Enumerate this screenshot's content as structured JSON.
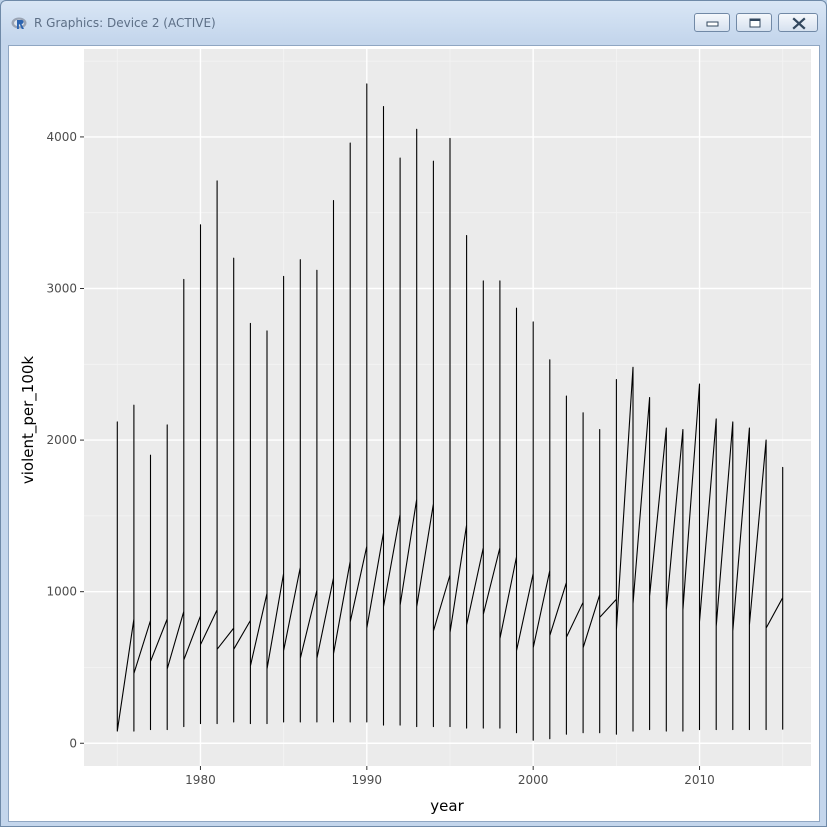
{
  "window": {
    "title": "R Graphics: Device 2 (ACTIVE)",
    "icon": "r-logo-icon",
    "buttons": [
      "minimize-icon",
      "maximize-icon",
      "close-icon"
    ]
  },
  "colors": {
    "panel": "#ebebeb",
    "grid_major": "#ffffff",
    "grid_minor": "#f4f4f4",
    "line": "#000000"
  },
  "chart_data": {
    "type": "line",
    "xlabel": "year",
    "ylabel": "violent_per_100k",
    "xlim": [
      1973.0,
      2016.7
    ],
    "ylim": [
      -150,
      4580
    ],
    "xticks": [
      1980,
      1990,
      2000,
      2010
    ],
    "yticks": [
      0,
      1000,
      2000,
      3000,
      4000
    ],
    "grid": true,
    "legend": "none",
    "points": [
      {
        "year": 1975,
        "values": [
          440,
          2120,
          80
        ]
      },
      {
        "year": 1976,
        "values": [
          820,
          2230,
          80,
          460
        ]
      },
      {
        "year": 1977,
        "values": [
          810,
          1900,
          90,
          540
        ]
      },
      {
        "year": 1978,
        "values": [
          820,
          2100,
          90,
          490
        ]
      },
      {
        "year": 1979,
        "values": [
          870,
          3060,
          110,
          550
        ]
      },
      {
        "year": 1980,
        "values": [
          840,
          3420,
          130,
          650
        ]
      },
      {
        "year": 1981,
        "values": [
          880,
          3710,
          130,
          620
        ]
      },
      {
        "year": 1982,
        "values": [
          760,
          3200,
          140,
          620
        ]
      },
      {
        "year": 1983,
        "values": [
          810,
          2770,
          130,
          510
        ]
      },
      {
        "year": 1984,
        "values": [
          990,
          2720,
          130,
          490
        ]
      },
      {
        "year": 1985,
        "values": [
          1120,
          3080,
          140,
          610
        ]
      },
      {
        "year": 1986,
        "values": [
          1160,
          3190,
          140,
          560
        ]
      },
      {
        "year": 1987,
        "values": [
          1010,
          3120,
          140,
          560
        ]
      },
      {
        "year": 1988,
        "values": [
          1090,
          3580,
          140,
          590
        ]
      },
      {
        "year": 1989,
        "values": [
          1200,
          3960,
          140,
          800
        ]
      },
      {
        "year": 1990,
        "values": [
          1300,
          4350,
          140,
          760
        ]
      },
      {
        "year": 1991,
        "values": [
          1390,
          4200,
          120,
          900
        ]
      },
      {
        "year": 1992,
        "values": [
          1510,
          3860,
          120,
          910
        ]
      },
      {
        "year": 1993,
        "values": [
          1610,
          4050,
          110,
          900
        ]
      },
      {
        "year": 1994,
        "values": [
          1580,
          3840,
          110,
          740
        ]
      },
      {
        "year": 1995,
        "values": [
          1110,
          3990,
          110,
          730
        ]
      },
      {
        "year": 1996,
        "values": [
          1440,
          3350,
          100,
          780
        ]
      },
      {
        "year": 1997,
        "values": [
          1290,
          3050,
          100,
          850
        ]
      },
      {
        "year": 1998,
        "values": [
          1290,
          3050,
          100,
          690
        ]
      },
      {
        "year": 1999,
        "values": [
          1230,
          2870,
          70,
          610
        ]
      },
      {
        "year": 2000,
        "values": [
          1120,
          2780,
          20,
          630
        ]
      },
      {
        "year": 2001,
        "values": [
          1140,
          2530,
          30,
          710
        ]
      },
      {
        "year": 2002,
        "values": [
          1060,
          2290,
          60,
          700
        ]
      },
      {
        "year": 2003,
        "values": [
          930,
          2180,
          70,
          630
        ]
      },
      {
        "year": 2004,
        "values": [
          980,
          2070,
          70,
          830
        ]
      },
      {
        "year": 2005,
        "values": [
          950,
          2400,
          60,
          750
        ]
      },
      {
        "year": 2006,
        "values": [
          2480,
          80,
          920
        ]
      },
      {
        "year": 2007,
        "values": [
          2280,
          90,
          970
        ]
      },
      {
        "year": 2008,
        "values": [
          2080,
          80,
          880
        ]
      },
      {
        "year": 2009,
        "values": [
          2070,
          80,
          780,
          880
        ]
      },
      {
        "year": 2010,
        "values": [
          2370,
          90,
          800
        ]
      },
      {
        "year": 2011,
        "values": [
          2140,
          90,
          770
        ]
      },
      {
        "year": 2012,
        "values": [
          2120,
          90,
          740
        ]
      },
      {
        "year": 2013,
        "values": [
          2080,
          90,
          780
        ]
      },
      {
        "year": 2014,
        "values": [
          2000,
          90,
          870,
          760
        ]
      },
      {
        "year": 2015,
        "values": [
          960,
          1820,
          90
        ]
      }
    ]
  }
}
